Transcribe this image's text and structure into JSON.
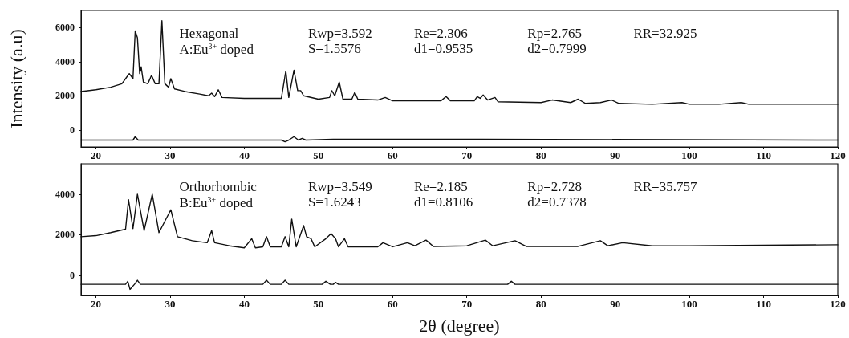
{
  "chart_data": [
    {
      "type": "line",
      "ylabel": "Intensity (a.u)",
      "xlim": [
        18,
        120
      ],
      "xticks": [
        20,
        30,
        40,
        50,
        60,
        70,
        80,
        90,
        100,
        110,
        120
      ],
      "ylim": [
        -1000,
        7000
      ],
      "yticks": [
        0,
        2000,
        4000,
        6000
      ],
      "grid": false,
      "marker": "none",
      "line_style": "solid",
      "annotations": [
        "Hexagonal",
        "Rwp=3.592",
        "Re=2.306",
        "Rp=2.765",
        "RR=32.925",
        "A:Eu$^{3+}$ doped",
        "S=1.5576",
        "d1=0.9535",
        "d2=0.7999"
      ],
      "series": [
        {
          "color": "#111111",
          "x": [
            18,
            20,
            22,
            23.5,
            24,
            24.5,
            25,
            25.3,
            25.6,
            25.9,
            26.1,
            26.4,
            27,
            27.5,
            28,
            28.5,
            28.9,
            29.3,
            29.8,
            30.1,
            30.6,
            32,
            34,
            35.2,
            35.6,
            36,
            36.5,
            37,
            40,
            43,
            45,
            45.6,
            46,
            46.7,
            47.2,
            47.6,
            48,
            50,
            51.5,
            51.8,
            52.2,
            52.8,
            53.3,
            54.5,
            54.9,
            55.3,
            58,
            59,
            60,
            64,
            66.5,
            67.2,
            67.8,
            71,
            71.4,
            71.8,
            72.2,
            72.8,
            73.8,
            74.2,
            80,
            81.5,
            84,
            85,
            86,
            88,
            89.5,
            90.5,
            95,
            99,
            100,
            104,
            107,
            108,
            120
          ],
          "values": [
            2250,
            2350,
            2500,
            2700,
            3000,
            3300,
            3000,
            5800,
            5400,
            3300,
            3700,
            2800,
            2700,
            3200,
            2700,
            2700,
            6400,
            2700,
            2500,
            3000,
            2400,
            2250,
            2100,
            2000,
            2150,
            1950,
            2350,
            1900,
            1850,
            1850,
            1850,
            3450,
            1900,
            3500,
            2300,
            2300,
            2000,
            1800,
            1900,
            2300,
            2000,
            2800,
            1800,
            1800,
            2200,
            1800,
            1750,
            1900,
            1700,
            1700,
            1700,
            1950,
            1700,
            1700,
            1950,
            1850,
            2050,
            1750,
            1900,
            1650,
            1600,
            1750,
            1600,
            1800,
            1550,
            1600,
            1750,
            1550,
            1500,
            1600,
            1500,
            1500,
            1600,
            1500,
            1500
          ]
        },
        {
          "color": "#111111",
          "x": [
            18,
            25,
            25.3,
            25.7,
            45,
            45.5,
            46,
            46.7,
            47.3,
            47.8,
            48.3,
            52,
            72,
            120
          ],
          "values": [
            -600,
            -600,
            -400,
            -600,
            -600,
            -700,
            -600,
            -400,
            -600,
            -500,
            -600,
            -550,
            -550,
            -600
          ]
        }
      ]
    },
    {
      "type": "line",
      "xlabel": "2θ (degree)",
      "xlim": [
        18,
        120
      ],
      "xticks": [
        20,
        30,
        40,
        50,
        60,
        70,
        80,
        90,
        100,
        110,
        120
      ],
      "ylim": [
        -1000,
        5500
      ],
      "yticks": [
        0,
        2000,
        4000
      ],
      "grid": false,
      "marker": "none",
      "line_style": "solid",
      "annotations": [
        "Orthorhombic",
        "Rwp=3.549",
        "Re=2.185",
        "Rp=2.728",
        "RR=35.757",
        "B:Eu$^{3+}$ doped",
        "S=1.6243",
        "d1=0.8106",
        "d2=0.7378"
      ],
      "series": [
        {
          "color": "#111111",
          "x": [
            18,
            20,
            22,
            24,
            24.4,
            25,
            25.6,
            26.5,
            27.6,
            28.5,
            30.1,
            31,
            33,
            35,
            35.6,
            36,
            38,
            40,
            41,
            41.5,
            42.5,
            43,
            43.5,
            45,
            45.5,
            46,
            46.4,
            47,
            48,
            48.4,
            49,
            49.5,
            51,
            51.7,
            52.3,
            52.7,
            53.5,
            54,
            58,
            58.7,
            60,
            62,
            63,
            64.5,
            65.5,
            70,
            72.5,
            73.5,
            76.5,
            78,
            85,
            88,
            89,
            91,
            95,
            100,
            110,
            120
          ],
          "values": [
            1900,
            1950,
            2100,
            2270,
            3730,
            2300,
            4000,
            2200,
            4000,
            2100,
            3230,
            1900,
            1700,
            1600,
            2200,
            1600,
            1450,
            1350,
            1800,
            1350,
            1400,
            1900,
            1400,
            1400,
            1900,
            1400,
            2770,
            1400,
            2450,
            1900,
            1800,
            1400,
            1800,
            2050,
            1800,
            1400,
            1800,
            1400,
            1400,
            1600,
            1400,
            1600,
            1450,
            1730,
            1420,
            1450,
            1730,
            1450,
            1700,
            1420,
            1420,
            1700,
            1450,
            1600,
            1450,
            1450,
            1480,
            1500
          ]
        },
        {
          "color": "#111111",
          "x": [
            18,
            24,
            24.3,
            24.6,
            25.2,
            25.6,
            26,
            42.5,
            43,
            43.5,
            45,
            45.5,
            46,
            50.5,
            51,
            51.6,
            52,
            52.3,
            52.7,
            75.5,
            76,
            76.5,
            120
          ],
          "values": [
            -450,
            -450,
            -300,
            -700,
            -450,
            -250,
            -450,
            -450,
            -250,
            -450,
            -450,
            -250,
            -450,
            -450,
            -300,
            -450,
            -450,
            -350,
            -450,
            -450,
            -300,
            -450,
            -450
          ]
        }
      ]
    }
  ]
}
